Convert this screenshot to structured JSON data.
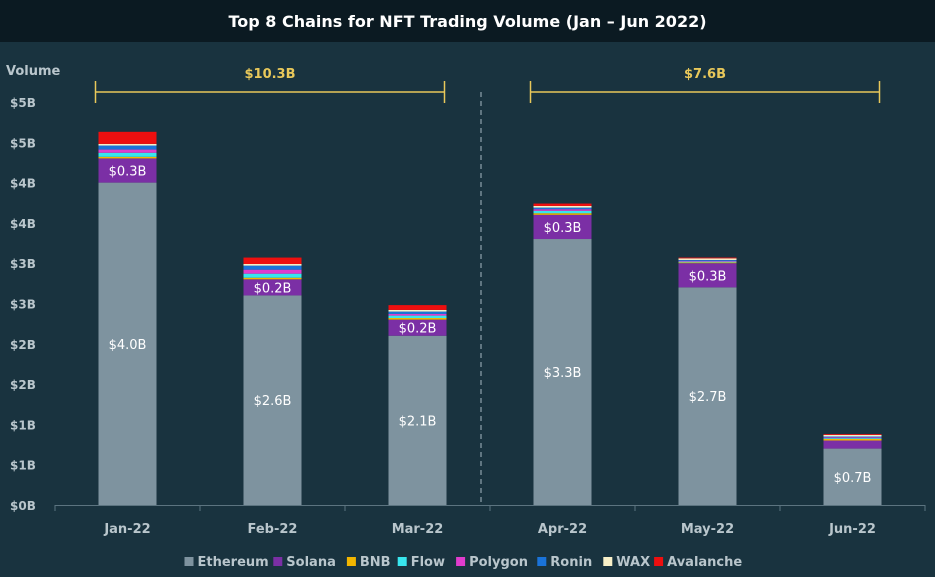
{
  "chart_data": {
    "type": "bar",
    "stacked": true,
    "title": "Top 8 Chains for NFT Trading Volume (Jan – Jun 2022)",
    "ylabel": "Volume",
    "xlabel": "",
    "categories": [
      "Jan-22",
      "Feb-22",
      "Mar-22",
      "Apr-22",
      "May-22",
      "Jun-22"
    ],
    "ylim": [
      0,
      4.75
    ],
    "y_ticks": [
      {
        "value": 0,
        "label": "$0B"
      },
      {
        "value": 0.5,
        "label": "$1B"
      },
      {
        "value": 1.0,
        "label": "$1B"
      },
      {
        "value": 1.5,
        "label": "$2B"
      },
      {
        "value": 2.0,
        "label": "$2B"
      },
      {
        "value": 2.5,
        "label": "$3B"
      },
      {
        "value": 3.0,
        "label": "$3B"
      },
      {
        "value": 3.5,
        "label": "$4B"
      },
      {
        "value": 4.0,
        "label": "$4B"
      },
      {
        "value": 4.5,
        "label": "$5B"
      },
      {
        "value": 5.0,
        "label": "$5B"
      }
    ],
    "series": [
      {
        "name": "Ethereum",
        "color": "#7e939f",
        "values": [
          4.0,
          2.6,
          2.1,
          3.3,
          2.7,
          0.7
        ],
        "labels": [
          "$4.0B",
          "$2.6B",
          "$2.1B",
          "$3.3B",
          "$2.7B",
          "$0.7B"
        ]
      },
      {
        "name": "Solana",
        "color": "#7b2fa5",
        "values": [
          0.3,
          0.2,
          0.2,
          0.3,
          0.3,
          0.1
        ],
        "labels": [
          "$0.3B",
          "$0.2B",
          "$0.2B",
          "$0.3B",
          "$0.3B",
          ""
        ]
      },
      {
        "name": "BNB",
        "color": "#f2b600",
        "values": [
          0.02,
          0.02,
          0.02,
          0.02,
          0.01,
          0.02
        ],
        "labels": []
      },
      {
        "name": "Flow",
        "color": "#38e6ee",
        "values": [
          0.05,
          0.05,
          0.03,
          0.03,
          0.01,
          0.01
        ],
        "labels": []
      },
      {
        "name": "Polygon",
        "color": "#e03ccd",
        "values": [
          0.04,
          0.05,
          0.02,
          0.02,
          0.01,
          0.01
        ],
        "labels": []
      },
      {
        "name": "Ronin",
        "color": "#1a73d9",
        "values": [
          0.05,
          0.05,
          0.03,
          0.02,
          0.01,
          0.01
        ],
        "labels": []
      },
      {
        "name": "WAX",
        "color": "#f8f0c8",
        "values": [
          0.02,
          0.02,
          0.02,
          0.02,
          0.02,
          0.02
        ],
        "labels": []
      },
      {
        "name": "Avalanche",
        "color": "#ee0f0f",
        "values": [
          0.15,
          0.08,
          0.06,
          0.03,
          0.01,
          0.01
        ],
        "labels": []
      }
    ],
    "annotations": [
      {
        "label": "$10.3B",
        "from_category": "Jan-22",
        "to_category": "Mar-22"
      },
      {
        "label": "$7.6B",
        "from_category": "Apr-22",
        "to_category": "Jun-22"
      }
    ],
    "divider_after_category": "Mar-22",
    "legend_position": "bottom",
    "grid": false,
    "colors": {
      "background": "#19333f",
      "title_bar": "#0b1a22",
      "axis_text": "#b9c6cc",
      "annotation": "#e8c85a",
      "axis_line": "#5c7480"
    }
  }
}
